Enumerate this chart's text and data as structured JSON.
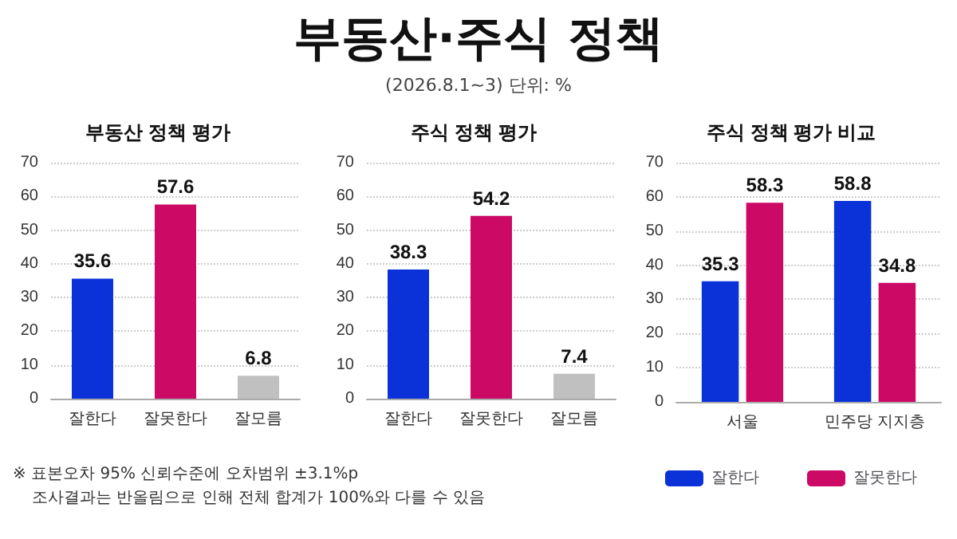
{
  "chart_data": [
    {
      "type": "other",
      "title": "부동산·주식 정책",
      "subtitle": "(2026.8.1~3) 단위: %",
      "annotations": [
        "※ 표본오차 95% 신뢰수준에 오차범위 ±3.1%p",
        "조사결과는 반올림으로 인해 전체 합계가 100%와 다를 수 있음"
      ]
    },
    {
      "type": "bar",
      "title": "부동산 정책 평가",
      "categories": [
        "잘한다",
        "잘못한다",
        "잘모름"
      ],
      "values": [
        35.6,
        57.6,
        6.8
      ],
      "colors": [
        "#0a32d8",
        "#cc0a66",
        "#c0c0c0"
      ],
      "ylim": [
        0,
        70
      ],
      "yticks": [
        0,
        10,
        20,
        30,
        40,
        50,
        60,
        70
      ],
      "grid": "y",
      "data_labels": true,
      "legend": false
    },
    {
      "type": "bar",
      "title": "주식 정책 평가",
      "categories": [
        "잘한다",
        "잘못한다",
        "잘모름"
      ],
      "values": [
        38.3,
        54.2,
        7.4
      ],
      "colors": [
        "#0a32d8",
        "#cc0a66",
        "#c0c0c0"
      ],
      "ylim": [
        0,
        70
      ],
      "yticks": [
        0,
        10,
        20,
        30,
        40,
        50,
        60,
        70
      ],
      "grid": "y",
      "data_labels": true,
      "legend": false
    },
    {
      "type": "bar",
      "title": "주식 정책 평가 비교",
      "categories": [
        "서울",
        "민주당 지지층"
      ],
      "series": [
        {
          "name": "잘한다",
          "color": "#0a32d8",
          "values": [
            35.3,
            58.8
          ]
        },
        {
          "name": "잘못한다",
          "color": "#cc0a66",
          "values": [
            58.3,
            34.8
          ]
        }
      ],
      "ylim": [
        0,
        70
      ],
      "yticks": [
        0,
        10,
        20,
        30,
        40,
        50,
        60,
        70
      ],
      "grid": "y",
      "data_labels": true,
      "legend": "bottom"
    }
  ]
}
